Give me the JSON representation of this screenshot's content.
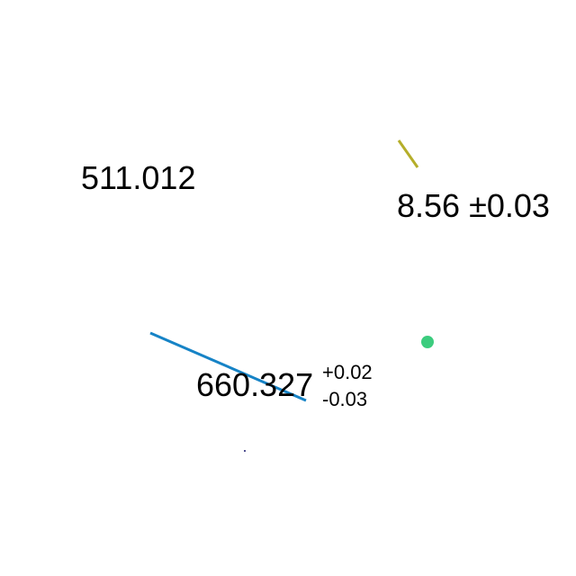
{
  "measurements": {
    "value_a": "511.012",
    "value_b": "8.56 ±0.03",
    "value_c": {
      "main": "660.327",
      "upper": "+0.02",
      "lower": "-0.03"
    }
  },
  "colors": {
    "olive_stroke": "#b5ae2a",
    "blue_stroke": "#1683c6",
    "green_dot": "#3ccc7e",
    "navy_dot": "#1a1a6e"
  }
}
